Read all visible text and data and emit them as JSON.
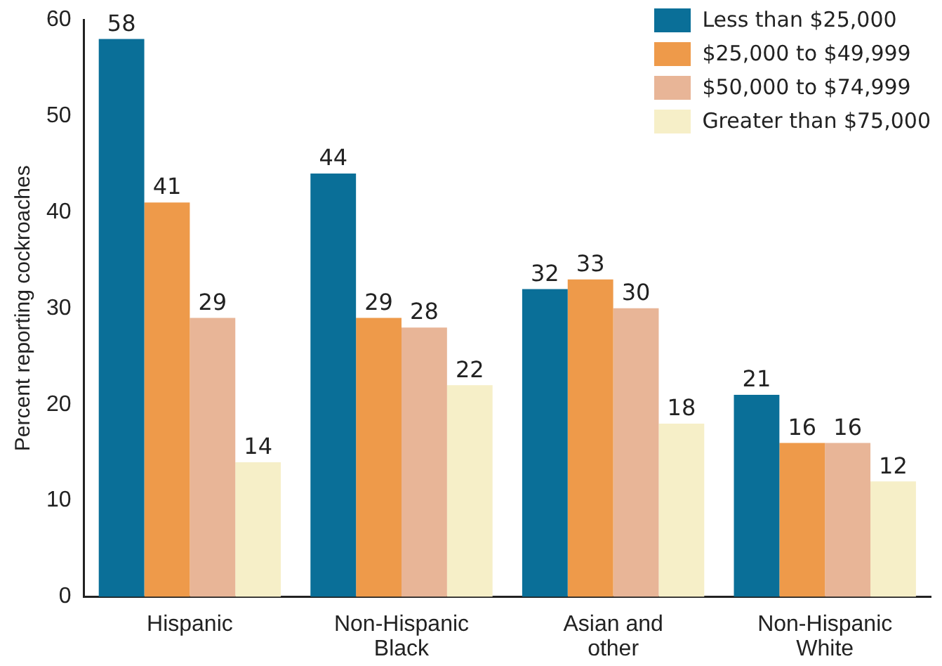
{
  "chart_data": {
    "type": "bar",
    "ylabel": "Percent reporting cockroaches",
    "categories": [
      "Hispanic",
      "Non-Hispanic\nBlack",
      "Asian and\nother",
      "Non-Hispanic\nWhite"
    ],
    "series": [
      {
        "name": "Less than $25,000",
        "color": "#0a6f98",
        "values": [
          58,
          44,
          32,
          21
        ]
      },
      {
        "name": "$25,000 to $49,999",
        "color": "#ee9a4a",
        "values": [
          41,
          29,
          33,
          16
        ]
      },
      {
        "name": "$50,000 to $74,999",
        "color": "#e8b597",
        "values": [
          29,
          28,
          30,
          16
        ]
      },
      {
        "name": "Greater than $75,000",
        "color": "#f6efc8",
        "values": [
          14,
          22,
          18,
          12
        ]
      }
    ],
    "ylim": [
      0,
      60
    ],
    "yticks": [
      0,
      10,
      20,
      30,
      40,
      50,
      60
    ],
    "grid": false,
    "legend": "top right",
    "data_labels": true
  }
}
